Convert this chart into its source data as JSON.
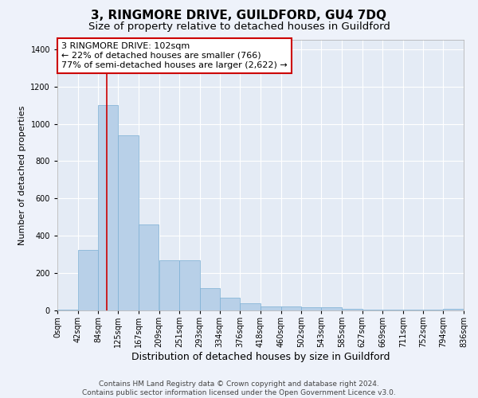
{
  "title1": "3, RINGMORE DRIVE, GUILDFORD, GU4 7DQ",
  "title2": "Size of property relative to detached houses in Guildford",
  "xlabel": "Distribution of detached houses by size in Guildford",
  "ylabel": "Number of detached properties",
  "footnote1": "Contains HM Land Registry data © Crown copyright and database right 2024.",
  "footnote2": "Contains public sector information licensed under the Open Government Licence v3.0.",
  "annotation_line1": "3 RINGMORE DRIVE: 102sqm",
  "annotation_line2": "← 22% of detached houses are smaller (766)",
  "annotation_line3": "77% of semi-detached houses are larger (2,622) →",
  "bar_color": "#b8d0e8",
  "bar_edge_color": "#7bafd4",
  "annotation_box_edgecolor": "#cc0000",
  "vline_color": "#cc0000",
  "property_size_sqm": 102,
  "bin_edges": [
    0,
    42,
    84,
    125,
    167,
    209,
    251,
    293,
    334,
    376,
    418,
    460,
    502,
    543,
    585,
    627,
    669,
    711,
    752,
    794,
    836
  ],
  "bin_labels": [
    "0sqm",
    "42sqm",
    "84sqm",
    "125sqm",
    "167sqm",
    "209sqm",
    "251sqm",
    "293sqm",
    "334sqm",
    "376sqm",
    "418sqm",
    "460sqm",
    "502sqm",
    "543sqm",
    "585sqm",
    "627sqm",
    "669sqm",
    "711sqm",
    "752sqm",
    "794sqm",
    "836sqm"
  ],
  "bar_heights": [
    5,
    325,
    1100,
    940,
    460,
    270,
    270,
    120,
    70,
    40,
    20,
    20,
    15,
    15,
    10,
    5,
    5,
    5,
    5,
    10
  ],
  "ylim": [
    0,
    1450
  ],
  "yticks": [
    0,
    200,
    400,
    600,
    800,
    1000,
    1200,
    1400
  ],
  "background_color": "#eef2fa",
  "plot_bg_color": "#e4ebf5",
  "grid_color": "#ffffff",
  "title1_fontsize": 11,
  "title2_fontsize": 9.5,
  "annotation_fontsize": 8,
  "axis_ylabel_fontsize": 8,
  "axis_xlabel_fontsize": 9,
  "tick_fontsize": 7,
  "footnote_fontsize": 6.5
}
